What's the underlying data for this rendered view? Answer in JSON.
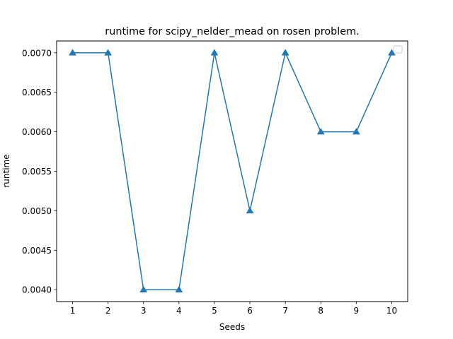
{
  "chart_data": {
    "type": "line",
    "title": "runtime for scipy_nelder_mead on rosen problem.",
    "xlabel": "Seeds",
    "ylabel": "runtime",
    "x": [
      1,
      2,
      3,
      4,
      5,
      6,
      7,
      8,
      9,
      10
    ],
    "series": [
      {
        "values": [
          0.007,
          0.007,
          0.004,
          0.004,
          0.007,
          0.005,
          0.007,
          0.006,
          0.006,
          0.007
        ],
        "color": "#1f77b4",
        "marker": "triangle-up"
      }
    ],
    "xticks": [
      "1",
      "2",
      "3",
      "4",
      "5",
      "6",
      "7",
      "8",
      "9",
      "10"
    ],
    "yticks": [
      "0.0040",
      "0.0045",
      "0.0050",
      "0.0055",
      "0.0060",
      "0.0065",
      "0.0070"
    ],
    "ytick_values": [
      0.004,
      0.0045,
      0.005,
      0.0055,
      0.006,
      0.0065,
      0.007
    ],
    "xlim": [
      0.55,
      10.45
    ],
    "ylim": [
      0.00385,
      0.00715
    ],
    "grid": false,
    "legend": "top-right (empty)"
  }
}
